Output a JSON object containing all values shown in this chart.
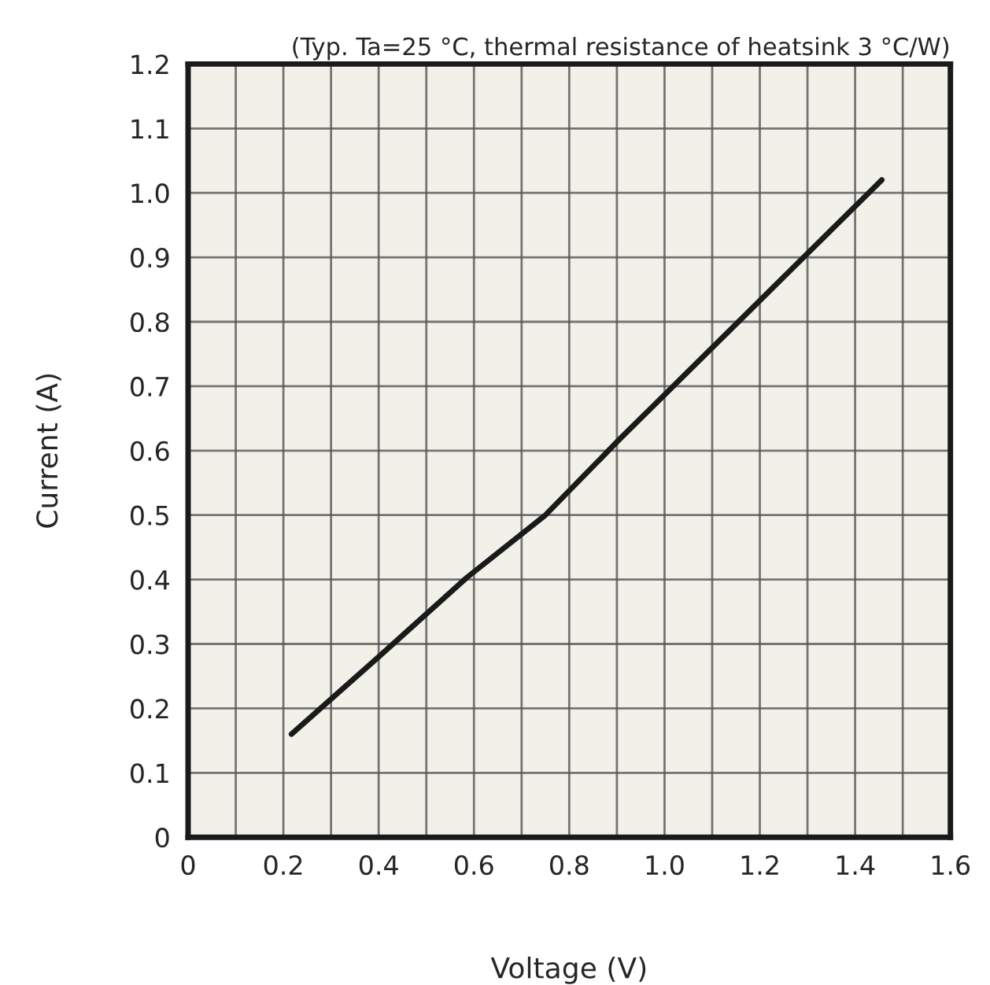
{
  "chart_data": {
    "type": "line",
    "xlabel": "Voltage (V)",
    "ylabel": "Current (A)",
    "annotations": [
      "(Typ. Ta=25 °C, thermal resistance of heatsink 3 °C/W)"
    ],
    "series": [
      {
        "color": "#1a1a1a",
        "x": [
          0.217,
          0.4,
          0.585,
          0.75,
          0.906,
          1.173,
          1.456
        ],
        "values": [
          0.16,
          0.28,
          0.403,
          0.5,
          0.618,
          0.813,
          1.02
        ]
      }
    ],
    "xlim": [
      0,
      1.6
    ],
    "ylim": [
      0,
      1.2
    ],
    "xticks": [
      0,
      {
        "value": 0.1,
        "label": null
      },
      0.2,
      {
        "value": 0.3,
        "label": null
      },
      0.4,
      {
        "value": 0.5,
        "label": null
      },
      0.6,
      {
        "value": 0.7,
        "label": null
      },
      0.8,
      {
        "value": 0.9,
        "label": null
      },
      {
        "value": 1.0,
        "label": "1.0"
      },
      {
        "value": 1.1,
        "label": null
      },
      1.2,
      {
        "value": 1.3,
        "label": null
      },
      1.4,
      {
        "value": 1.5,
        "label": null
      },
      1.6
    ],
    "yticks": [
      0,
      0.1,
      0.2,
      0.3,
      0.4,
      0.5,
      0.6,
      0.7,
      0.8,
      0.9,
      {
        "value": 1.0,
        "label": "1.0"
      },
      1.1,
      1.2
    ],
    "grid": true,
    "marker": "none",
    "line_style": "solid"
  }
}
